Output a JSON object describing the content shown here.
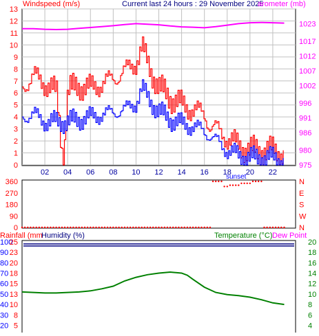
{
  "header": {
    "left": "Windspeed (m/s)",
    "center": "Current last 24 hours : 29 November 2025",
    "right": "arometer (mb)"
  },
  "mid_labels": {
    "sunset": "sunset"
  },
  "bottom_header": {
    "rainfall": "Rainfall (mm",
    "humidity": "Humidity (%)",
    "temperature": "Temperature (°C)",
    "dewpoint": "Dew Point"
  },
  "colors": {
    "wind_gust": "#ff0000",
    "wind_avg": "#0000ff",
    "barometer": "#ff00ff",
    "direction": "#ff0000",
    "humidity": "#000080",
    "temperature": "#008000",
    "grid": "#c0c0c0",
    "header_left": "#ff0000",
    "header_center": "#000080",
    "header_right": "#ff00ff"
  },
  "chart_data": [
    {
      "type": "line",
      "title": "Current last 24 hours : 29 November 2025",
      "ylabel": "Windspeed (m/s)",
      "y2label": "arometer (mb)",
      "x_ticks": [
        "02",
        "04",
        "06",
        "08",
        "10",
        "12",
        "14",
        "16",
        "18",
        "20",
        "22"
      ],
      "y_ticks": [
        0,
        1,
        2,
        3,
        4,
        5,
        6,
        7,
        8,
        9,
        10,
        11,
        12,
        13
      ],
      "y2_ticks": [
        975,
        980,
        986,
        991,
        996,
        1002,
        1007,
        1012,
        1017,
        1023
      ],
      "ylim": [
        0,
        13
      ],
      "y2lim": [
        975,
        1028
      ],
      "grid": true,
      "series": [
        {
          "name": "Gust",
          "axis": "left",
          "x": [
            0,
            1,
            2,
            3,
            3.6,
            4,
            5,
            6,
            7,
            8,
            9,
            10,
            10.5,
            11,
            12,
            13,
            14,
            15,
            16,
            16.5,
            17,
            18,
            19,
            20,
            21,
            22,
            23
          ],
          "values": [
            6.5,
            7.4,
            6.8,
            6.0,
            0.2,
            6.2,
            6.6,
            6.4,
            6.8,
            7.2,
            7.8,
            8.6,
            9.8,
            8.4,
            6.4,
            5.6,
            5.0,
            4.6,
            4.2,
            3.2,
            3.0,
            2.2,
            1.6,
            1.2,
            1.2,
            1.2,
            1.0
          ]
        },
        {
          "name": "Average",
          "axis": "left",
          "x": [
            0,
            1,
            2,
            3,
            4,
            5,
            6,
            7,
            8,
            9,
            10,
            10.5,
            11,
            12,
            13,
            14,
            15,
            16,
            17,
            18,
            19,
            20,
            21,
            22,
            23
          ],
          "values": [
            4.0,
            4.2,
            3.6,
            3.6,
            3.6,
            3.8,
            4.0,
            4.2,
            4.4,
            4.6,
            5.2,
            6.4,
            5.6,
            4.4,
            3.8,
            3.4,
            3.2,
            2.8,
            2.0,
            1.2,
            0.8,
            0.6,
            0.6,
            0.6,
            0.4
          ]
        },
        {
          "name": "Barometer",
          "axis": "right",
          "x": [
            0,
            1,
            2,
            3,
            4,
            5,
            6,
            7,
            8,
            9,
            10,
            11,
            12,
            13,
            14,
            15,
            16,
            17,
            18,
            19,
            20,
            21,
            22,
            23
          ],
          "values": [
            1021.3,
            1021.3,
            1021.1,
            1021.0,
            1021.1,
            1021.4,
            1021.7,
            1022.0,
            1022.3,
            1022.7,
            1023.0,
            1022.8,
            1022.6,
            1022.2,
            1021.9,
            1021.8,
            1021.6,
            1022.0,
            1022.5,
            1023.0,
            1023.3,
            1023.4,
            1023.3,
            1023.2
          ]
        }
      ]
    },
    {
      "type": "scatter",
      "ylabel": "Wind direction",
      "y_ticks": [
        0,
        90,
        180,
        270,
        360
      ],
      "y2_ticks": [
        "N",
        "W",
        "S",
        "E",
        "N"
      ],
      "ylim": [
        0,
        360
      ],
      "annotations": [
        "sunset"
      ],
      "series": [
        {
          "name": "Direction",
          "x": [
            0,
            1,
            2,
            3,
            4,
            5,
            6,
            7,
            8,
            9,
            10,
            11,
            12,
            13,
            14,
            15,
            16,
            16.5,
            17,
            17.5,
            18,
            19,
            20,
            21,
            22,
            23
          ],
          "values": [
            0,
            0,
            0,
            0,
            0,
            0,
            0,
            0,
            0,
            0,
            0,
            0,
            0,
            0,
            0,
            0,
            0,
            360,
            360,
            320,
            330,
            345,
            360,
            0,
            0,
            0
          ]
        }
      ]
    },
    {
      "type": "line",
      "ylabel": "Humidity (%)",
      "y2label": "Temperature (°C)",
      "y_ticks": [
        100,
        90,
        80,
        70,
        60,
        50,
        40,
        30,
        20
      ],
      "rain_ticks": [
        25,
        23,
        20,
        18,
        15,
        13,
        10,
        8,
        5
      ],
      "y2_ticks": [
        20,
        18,
        16,
        14,
        12,
        10,
        8,
        6,
        4
      ],
      "ylim": [
        20,
        100
      ],
      "y2lim": [
        4,
        20
      ],
      "series": [
        {
          "name": "Humidity",
          "axis": "left",
          "x": [
            0,
            23
          ],
          "values": [
            98,
            98
          ]
        },
        {
          "name": "Temperature",
          "axis": "right",
          "x": [
            0,
            1,
            2,
            3,
            4,
            5,
            6,
            7,
            8,
            9,
            10,
            11,
            12,
            13,
            14,
            14.5,
            15,
            16,
            17,
            18,
            19,
            20,
            21,
            22,
            23
          ],
          "values": [
            10.4,
            10.3,
            10.2,
            10.2,
            10.3,
            10.4,
            10.6,
            11.0,
            11.5,
            12.5,
            13.2,
            13.7,
            14.0,
            14.2,
            14.0,
            13.6,
            12.8,
            11.3,
            10.3,
            9.9,
            9.7,
            9.4,
            8.9,
            8.3,
            8.0
          ]
        }
      ]
    }
  ]
}
